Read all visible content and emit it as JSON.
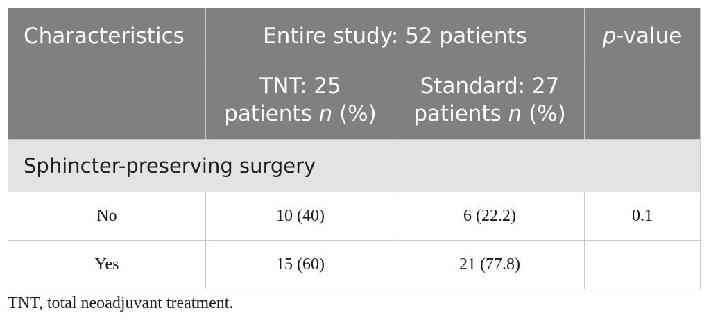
{
  "table": {
    "header": {
      "characteristics": "Characteristics",
      "entire_study": "Entire study: 52 patients",
      "p_value_symbol": "p",
      "p_value_rest": "-value",
      "tnt_line1": "TNT: 25",
      "tnt_line2_pre": "patients ",
      "tnt_n": "n",
      "tnt_pct": " (%)",
      "standard_line1": "Standard: 27",
      "standard_line2_pre": "patients ",
      "standard_n": "n",
      "standard_pct": " (%)"
    },
    "section": "Sphincter-preserving surgery",
    "rows": [
      {
        "label": "No",
        "tnt": "10 (40)",
        "standard": "6 (22.2)",
        "p": "0.1"
      },
      {
        "label": "Yes",
        "tnt": "15 (60)",
        "standard": "21 (77.8)",
        "p": ""
      }
    ]
  },
  "footnote": "TNT, total neoadjuvant treatment.",
  "colors": {
    "header_bg": "#808080",
    "section_bg": "#e3e3e3",
    "border": "#c9c9c9"
  }
}
